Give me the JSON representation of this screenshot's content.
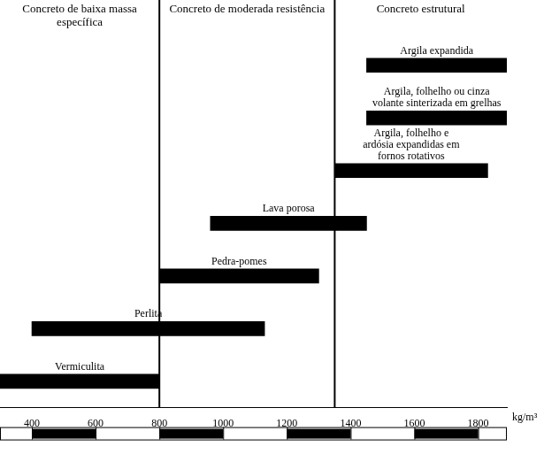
{
  "chart_data": {
    "type": "bar",
    "orientation": "horizontal",
    "categories": [
      [
        "Argila expandida"
      ],
      [
        "Argila, folhelho ou cinza",
        "volante sinterizada em grelhas"
      ],
      [
        "Argila, folhelho e",
        "ardósia expandidas em",
        "fornos rotativos"
      ],
      [
        "Lava porosa"
      ],
      [
        "Pedra-pomes"
      ],
      [
        "Perlita"
      ],
      [
        "Vermiculita"
      ]
    ],
    "values": [
      [
        1450,
        1890
      ],
      [
        1450,
        1890
      ],
      [
        1350,
        1830
      ],
      [
        960,
        1450
      ],
      [
        800,
        1300
      ],
      [
        400,
        1130
      ],
      [
        300,
        800
      ]
    ],
    "color": "#000000",
    "x_label": "kg/m³",
    "xlim": [
      300,
      1890
    ],
    "xticks": [
      400,
      600,
      800,
      1000,
      1200,
      1400,
      1600,
      1800
    ],
    "annotations": {
      "dividers": [
        800,
        1350
      ],
      "zone_labels": [
        "Concreto de baixa massa específica",
        "Concreto de moderada resistência",
        "Concreto estrutural"
      ]
    },
    "grid": false,
    "tick_labels": "x"
  }
}
